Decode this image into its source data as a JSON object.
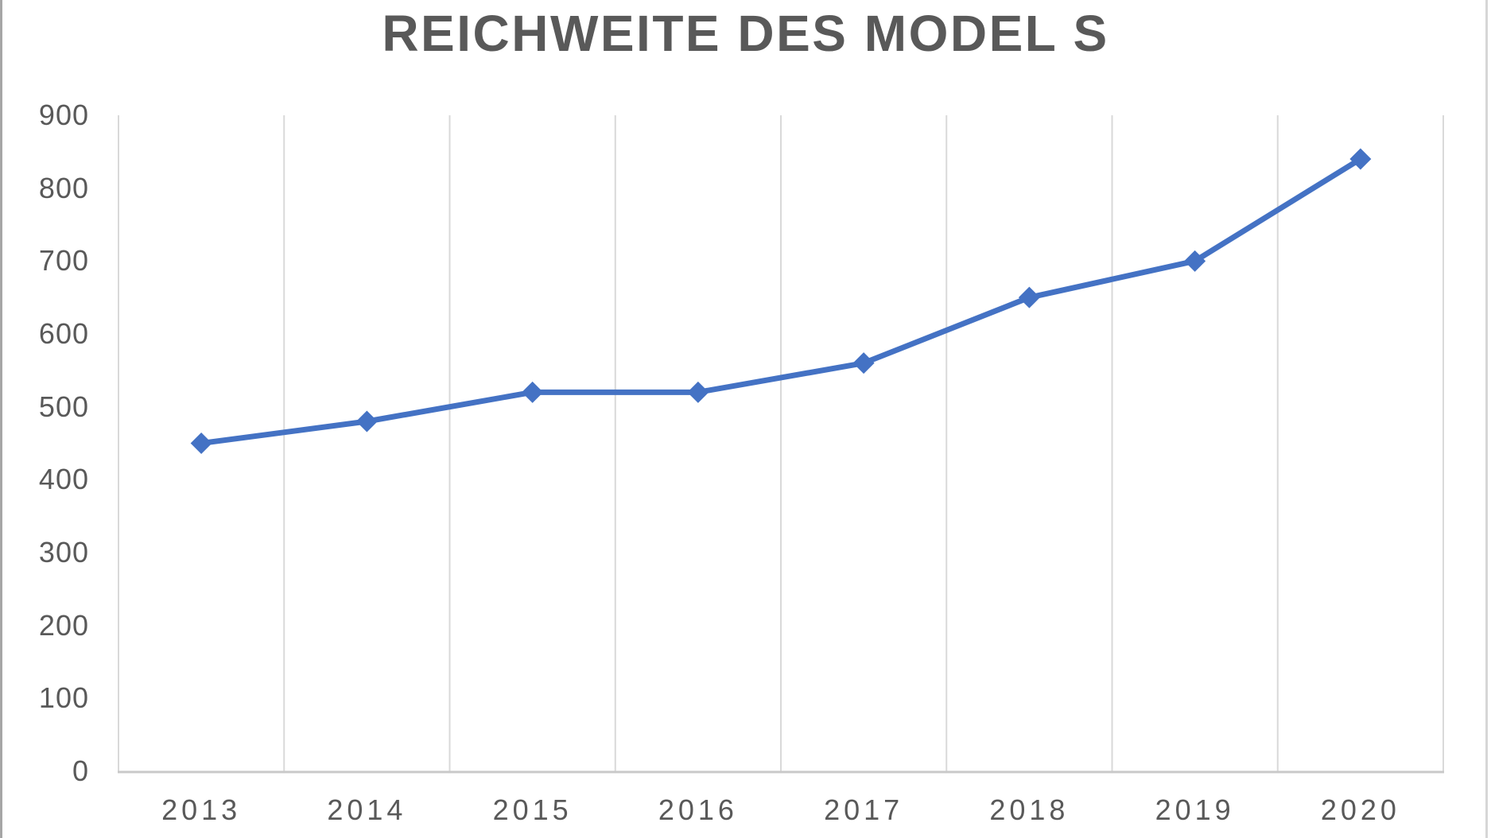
{
  "chart_data": {
    "type": "line",
    "title": "REICHWEITE DES MODEL S",
    "categories": [
      "2013",
      "2014",
      "2015",
      "2016",
      "2017",
      "2018",
      "2019",
      "2020"
    ],
    "series": [
      {
        "values": [
          450,
          480,
          520,
          520,
          560,
          650,
          700,
          840
        ]
      }
    ],
    "xlabel": "",
    "ylabel": "",
    "ylim": [
      0,
      900
    ],
    "ytick_step": 100,
    "marker": "diamond",
    "grid": "vertical-category-boundaries",
    "legend_position": "none",
    "colors": {
      "line": "#4472C4",
      "marker": "#4472C4",
      "gridline": "#D9D9D9",
      "axis_line": "#C9C9C9",
      "title_text": "#595959",
      "tick_text": "#595959",
      "background": "#FFFFFF",
      "frame_left": "#A6A6A6",
      "frame_right": "#D6D6D6"
    }
  }
}
